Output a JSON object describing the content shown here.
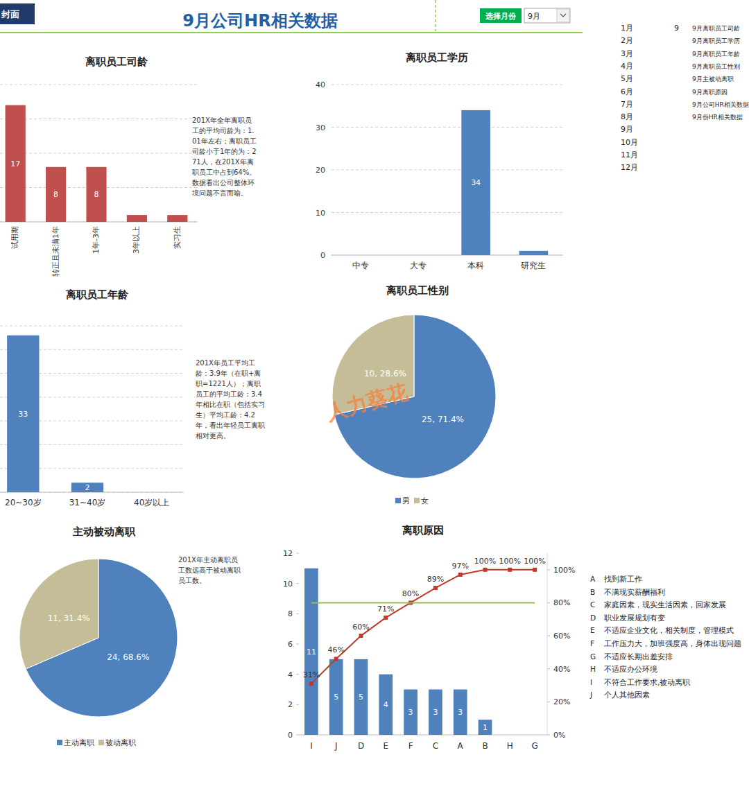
{
  "header": {
    "cover_button": "封面",
    "title": "9月公司HR相关数据",
    "month_button": "选择月份",
    "month_select": "9月"
  },
  "sidebar": {
    "months": [
      "1月",
      "2月",
      "3月",
      "4月",
      "5月",
      "6月",
      "7月",
      "8月",
      "9月",
      "10月",
      "11月",
      "12月"
    ],
    "selected_month": 9,
    "items": [
      "9月离职员工司龄",
      "9月离职员工学历",
      "9月离职员工年龄",
      "9月离职员工性别",
      "9月主被动离职",
      "9月离职原因",
      "9月公司HR相关数据",
      "9月份HR相关数据"
    ]
  },
  "watermark": "人力葵花",
  "chart_data": [
    {
      "type": "bar",
      "title": "离职员工司龄",
      "categories": [
        "试用期",
        "转正且未满1年",
        "1年-3年",
        "3年以上",
        "实习生"
      ],
      "values": [
        17,
        8,
        8,
        1,
        1
      ],
      "color": "#C0504D",
      "ylim": [
        0,
        20
      ],
      "yticks": [
        0,
        5,
        10,
        15,
        20
      ],
      "grid": true,
      "tick_labels": "x",
      "data_labels": true,
      "annotation": "201X年全年离职员工的平均司龄为：1.01年左右；离职员工司龄小于1年的为：271人，在201X年离职员工中占到64%。数据看出公司整体环境问题不言而喻。"
    },
    {
      "type": "bar",
      "title": "离职员工学历",
      "categories": [
        "中专",
        "大专",
        "本科",
        "研究生"
      ],
      "values": [
        0,
        0,
        34,
        1
      ],
      "color": "#4F81BD",
      "ylim": [
        0,
        40
      ],
      "yticks": [
        0,
        10,
        20,
        30,
        40
      ],
      "grid": true,
      "data_labels": true
    },
    {
      "type": "bar",
      "title": "离职员工年龄",
      "categories": [
        "20~30岁",
        "31~40岁",
        "40岁以上"
      ],
      "values": [
        33,
        2,
        0
      ],
      "color": "#4F81BD",
      "ylim": [
        0,
        35
      ],
      "yticks": [
        0,
        5,
        10,
        15,
        20,
        25,
        30,
        35
      ],
      "grid": true,
      "tick_labels": "x",
      "data_labels": true,
      "annotation": "201X年员工平均工龄：3.9年（在职+离职=1221人）；离职员工的平均工龄：3.4年相比在职（包括实习生）平均工龄：4.2年，看出年轻员工离职相对更高。"
    },
    {
      "type": "pie",
      "title": "离职员工性别",
      "categories": [
        "男",
        "女"
      ],
      "values": [
        25,
        10
      ],
      "value_labels": [
        "25, 71.4%",
        "10, 28.6%"
      ],
      "colors": [
        "#4F81BD",
        "#C4BD97"
      ],
      "legend": "bottom",
      "data_labels": true
    },
    {
      "type": "pie",
      "title": "主动被动离职",
      "categories": [
        "主动离职",
        "被动离职"
      ],
      "values": [
        24,
        11
      ],
      "value_labels": [
        "24, 68.6%",
        "11, 31.4%"
      ],
      "colors": [
        "#4F81BD",
        "#C4BD97"
      ],
      "legend": "bottom",
      "data_labels": true,
      "annotation": "201X年主动离职员工数远高于被动离职员工数。"
    },
    {
      "type": "bar",
      "title": "离职原因",
      "categories": [
        "I",
        "J",
        "D",
        "E",
        "F",
        "C",
        "A",
        "B",
        "H",
        "G"
      ],
      "ylim": [
        0,
        12
      ],
      "yticks": [
        0,
        2,
        4,
        6,
        8,
        10,
        12
      ],
      "y2lim": [
        0,
        110
      ],
      "y2ticks": [
        {
          "value": 0,
          "label": "0%"
        },
        {
          "value": 20,
          "label": "20%"
        },
        {
          "value": 40,
          "label": "40%"
        },
        {
          "value": 60,
          "label": "60%"
        },
        {
          "value": 80,
          "label": "80%"
        },
        {
          "value": 100,
          "label": "100%"
        }
      ],
      "grid": false,
      "series": [
        {
          "type": "bar",
          "color": "#4F81BD",
          "values": [
            11,
            5,
            5,
            4,
            3,
            3,
            3,
            1,
            0,
            0
          ],
          "data_labels": true
        },
        {
          "type": "line",
          "axis": "y2",
          "color": "#C0392B",
          "marker": "square",
          "line_style": "solid",
          "values": [
            31,
            46,
            60,
            71,
            80,
            89,
            97,
            100,
            100,
            100
          ],
          "value_labels": [
            "31%",
            "46%",
            "60%",
            "71%",
            "80%",
            "89%",
            "97%",
            "100%",
            "100%",
            "100%"
          ],
          "data_labels": true
        },
        {
          "type": "line",
          "axis": "y2",
          "color": "#9BBB59",
          "marker": "none",
          "line_style": "solid",
          "values": [
            80,
            80,
            80,
            80,
            80,
            80,
            80,
            80,
            80,
            80
          ],
          "data_labels": false
        }
      ],
      "key_table": [
        {
          "code": "A",
          "text": "找到新工作"
        },
        {
          "code": "B",
          "text": "不满现实薪酬福利"
        },
        {
          "code": "C",
          "text": "家庭因素，现实生活因素，回家发展"
        },
        {
          "code": "D",
          "text": "职业发展规划有变"
        },
        {
          "code": "E",
          "text": "不适应企业文化，相关制度，管理模式"
        },
        {
          "code": "F",
          "text": "工作压力大，加班强度高，身体出现问题"
        },
        {
          "code": "G",
          "text": "不适应长期出差安排"
        },
        {
          "code": "H",
          "text": "不适应办公环境"
        },
        {
          "code": "I",
          "text": "不符合工作要求,被动离职"
        },
        {
          "code": "J",
          "text": "个人其他因素"
        }
      ]
    }
  ]
}
